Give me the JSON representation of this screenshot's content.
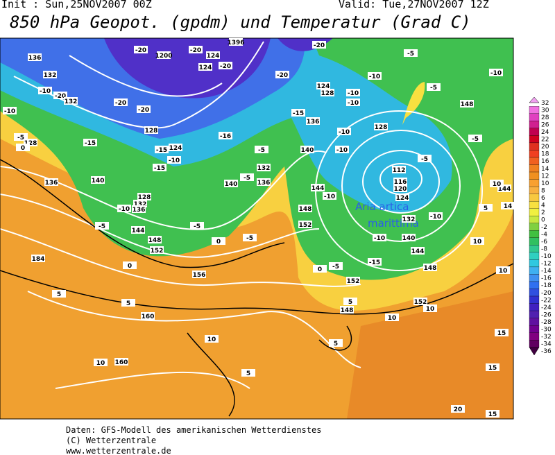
{
  "header": {
    "init": "Init : Sun,25NOV2007 00Z",
    "valid": "Valid: Tue,27NOV2007 12Z",
    "title": "850 hPa Geopot. (gpdm) und Temperatur (Grad C)"
  },
  "map": {
    "annotation": [
      "Aria artica",
      "marittima"
    ],
    "contour_labels": [
      "136",
      "132",
      "-10",
      "-20",
      "132",
      "-10",
      "-5",
      "128",
      "0",
      "-15",
      "136",
      "140",
      "-20",
      "1200",
      "-20",
      "124",
      "124",
      "-20",
      "-20",
      "-20",
      "128",
      "-15",
      "124",
      "-10",
      "-15",
      "128",
      "132",
      "136",
      "-10",
      "-5",
      "144",
      "148",
      "152",
      "0",
      "156",
      "-5",
      "140",
      "136",
      "-5",
      "132",
      "-5",
      "-16",
      "-15",
      "-20",
      "1396",
      "-20",
      "124",
      "128",
      "-10",
      "-10",
      "-5",
      "-5",
      "-10",
      "-10",
      "148",
      "136",
      "128",
      "-10",
      "-10",
      "140",
      "-5",
      "-5",
      "112",
      "116",
      "120",
      "124",
      "144",
      "-10",
      "148",
      "152",
      "132",
      "-10",
      "-10",
      "140",
      "144",
      "-15",
      "148",
      "152",
      "152",
      "0",
      "-5",
      "184",
      "160",
      "160",
      "5",
      "5",
      "10",
      "10",
      "5",
      "5",
      "5",
      "148",
      "10",
      "10",
      "15",
      "15",
      "15",
      "20",
      "5",
      "10",
      "10",
      "144",
      "14",
      "10",
      "-5",
      "0"
    ]
  },
  "colorbar": {
    "levels": [
      "32",
      "30",
      "28",
      "26",
      "24",
      "22",
      "20",
      "18",
      "16",
      "14",
      "12",
      "10",
      "8",
      "6",
      "4",
      "2",
      "0",
      "-2",
      "-4",
      "-6",
      "-8",
      "-10",
      "-12",
      "-14",
      "-16",
      "-18",
      "-20",
      "-22",
      "-24",
      "-26",
      "-28",
      "-30",
      "-32",
      "-34",
      "-36"
    ],
    "colors": [
      "#f0a0f0",
      "#f070e0",
      "#e040c0",
      "#d02090",
      "#c00050",
      "#d00020",
      "#e03020",
      "#f04020",
      "#f06020",
      "#f08020",
      "#f09020",
      "#f8a030",
      "#f8b040",
      "#f8c840",
      "#f8e040",
      "#f0f040",
      "#c8e840",
      "#80d040",
      "#40c040",
      "#30c060",
      "#30c890",
      "#30d0c0",
      "#30c8e0",
      "#40b0f0",
      "#4090f0",
      "#3070f0",
      "#3050e0",
      "#3030d0",
      "#4020c0",
      "#5020b0",
      "#6010a0",
      "#700090",
      "#800080",
      "#600060",
      "#400040"
    ]
  },
  "footer": [
    "Daten: GFS-Modell des amerikanischen Wetterdienstes",
    "(C) Wetterzentrale",
    "www.wetterzentrale.de"
  ]
}
